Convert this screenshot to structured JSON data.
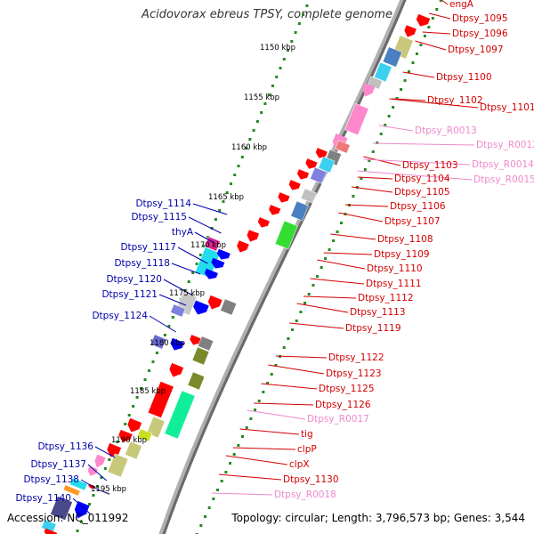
{
  "title": "Acidovorax ebreus TPSY, complete genome",
  "footer": {
    "accession": "Accession: NC_011992",
    "topology": "Topology: circular; Length: 3,796,573 bp; Genes: 3,544"
  },
  "colors": {
    "backbone": "#888888",
    "tick_dots": "#228b22",
    "label_red": "#d40000",
    "label_pink": "#ee88cc",
    "label_blue": "#0000aa",
    "cds_red": "#ff0000",
    "cds_blue": "#0000ff",
    "cds_pink": "#ff88cc"
  },
  "scale_labels": [
    "1150 kbp",
    "1155 kbp",
    "1160 kbp",
    "1165 kbp",
    "1170 kbp",
    "1175 kbp",
    "1180 kbp",
    "1185 kbp",
    "1190 kbp",
    "1195 kbp"
  ],
  "right_labels": [
    {
      "text": "engA",
      "kind": "red"
    },
    {
      "text": "Dtpsy_1095",
      "kind": "red"
    },
    {
      "text": "Dtpsy_1096",
      "kind": "red"
    },
    {
      "text": "Dtpsy_1097",
      "kind": "red"
    },
    {
      "text": "Dtpsy_1100",
      "kind": "red"
    },
    {
      "text": "Dtpsy_1102",
      "kind": "red"
    },
    {
      "text": "Dtpsy_1101",
      "kind": "red"
    },
    {
      "text": "Dtpsy_R0013",
      "kind": "pink"
    },
    {
      "text": "Dtpsy_R0012",
      "kind": "pink"
    },
    {
      "text": "Dtpsy_1103",
      "kind": "red"
    },
    {
      "text": "Dtpsy_R0014",
      "kind": "pink"
    },
    {
      "text": "Dtpsy_1104",
      "kind": "red"
    },
    {
      "text": "Dtpsy_R0015",
      "kind": "pink"
    },
    {
      "text": "Dtpsy_1105",
      "kind": "red"
    },
    {
      "text": "Dtpsy_1106",
      "kind": "red"
    },
    {
      "text": "Dtpsy_1107",
      "kind": "red"
    },
    {
      "text": "Dtpsy_1108",
      "kind": "red"
    },
    {
      "text": "Dtpsy_1109",
      "kind": "red"
    },
    {
      "text": "Dtpsy_1110",
      "kind": "red"
    },
    {
      "text": "Dtpsy_1111",
      "kind": "red"
    },
    {
      "text": "Dtpsy_1112",
      "kind": "red"
    },
    {
      "text": "Dtpsy_1113",
      "kind": "red"
    },
    {
      "text": "Dtpsy_1119",
      "kind": "red"
    },
    {
      "text": "Dtpsy_1122",
      "kind": "red"
    },
    {
      "text": "Dtpsy_1123",
      "kind": "red"
    },
    {
      "text": "Dtpsy_1125",
      "kind": "red"
    },
    {
      "text": "Dtpsy_1126",
      "kind": "red"
    },
    {
      "text": "Dtpsy_R0017",
      "kind": "pink"
    },
    {
      "text": "tig",
      "kind": "red"
    },
    {
      "text": "clpP",
      "kind": "red"
    },
    {
      "text": "clpX",
      "kind": "red"
    },
    {
      "text": "Dtpsy_1130",
      "kind": "red"
    },
    {
      "text": "Dtpsy_R0018",
      "kind": "pink"
    }
  ],
  "left_labels": [
    {
      "text": "Dtpsy_1114",
      "kind": "blue"
    },
    {
      "text": "Dtpsy_1115",
      "kind": "blue"
    },
    {
      "text": "thyA",
      "kind": "blue"
    },
    {
      "text": "Dtpsy_1117",
      "kind": "blue"
    },
    {
      "text": "Dtpsy_1118",
      "kind": "blue"
    },
    {
      "text": "Dtpsy_1120",
      "kind": "blue"
    },
    {
      "text": "Dtpsy_1121",
      "kind": "blue"
    },
    {
      "text": "Dtpsy_1124",
      "kind": "blue"
    },
    {
      "text": "Dtpsy_1136",
      "kind": "blue"
    },
    {
      "text": "Dtpsy_1137",
      "kind": "blue"
    },
    {
      "text": "Dtpsy_1138",
      "kind": "blue"
    },
    {
      "text": "Dtpsy_1140",
      "kind": "blue"
    }
  ]
}
